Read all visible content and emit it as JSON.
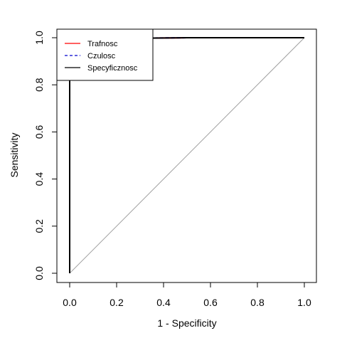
{
  "chart_data": {
    "type": "line",
    "title": "",
    "xlabel": "1 - Specificity",
    "ylabel": "Sensitivity",
    "xlim": [
      0,
      1
    ],
    "ylim": [
      0,
      1
    ],
    "x_ticks": [
      0,
      0.2,
      0.4,
      0.6,
      0.8,
      1
    ],
    "y_ticks": [
      0,
      0.2,
      0.4,
      0.6,
      0.8,
      1
    ],
    "x_tick_labels": [
      "0.0",
      "0.2",
      "0.4",
      "0.6",
      "0.8",
      "1.0"
    ],
    "y_tick_labels": [
      "0.0",
      "0.2",
      "0.4",
      "0.6",
      "0.8",
      "1.0"
    ],
    "grid": false,
    "legend_position": "top-left",
    "reference_line": {
      "name": "diagonal",
      "x": [
        0,
        1
      ],
      "y": [
        0,
        1
      ],
      "color": "#a0a0a0"
    },
    "series": [
      {
        "name": "Trafnosc",
        "color": "#ff0000",
        "dash": "solid",
        "x": [
          0,
          0,
          0.5,
          1
        ],
        "y": [
          0,
          0.995,
          1,
          1
        ]
      },
      {
        "name": "Czulosc",
        "color": "#0000cd",
        "dash": "dashed",
        "x": [
          0,
          0,
          0.5,
          1
        ],
        "y": [
          0,
          0.995,
          1,
          1
        ]
      },
      {
        "name": "Specyficznosc",
        "color": "#000000",
        "dash": "solid",
        "x": [
          0,
          0,
          0.5,
          1
        ],
        "y": [
          0,
          0.995,
          1,
          1
        ]
      }
    ]
  }
}
